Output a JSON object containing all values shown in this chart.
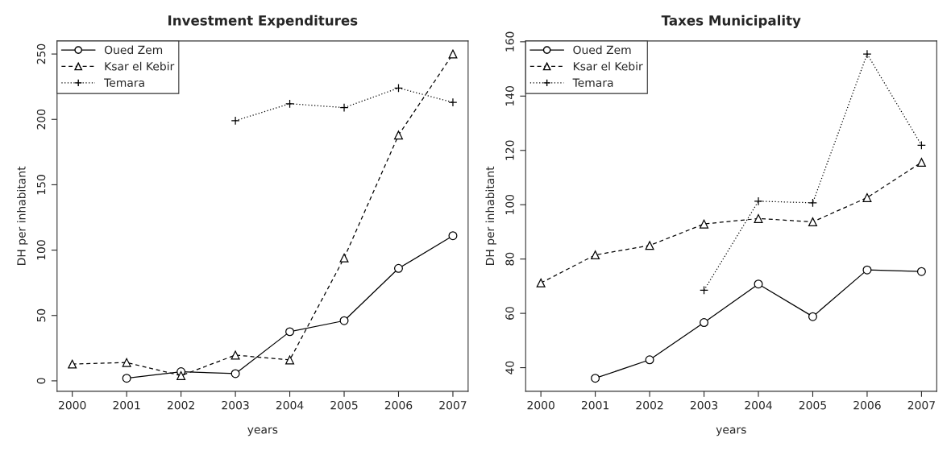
{
  "chart_data": [
    {
      "type": "line",
      "title": "Investment Expenditures",
      "xlabel": "years",
      "ylabel": "DH per inhabitant",
      "x": [
        2000,
        2001,
        2002,
        2003,
        2004,
        2005,
        2006,
        2007
      ],
      "xlim": [
        1999.72,
        2007.28
      ],
      "xticks": [
        2000,
        2001,
        2002,
        2003,
        2004,
        2005,
        2006,
        2007
      ],
      "ylim": [
        -8,
        260
      ],
      "yticks": [
        0,
        50,
        100,
        150,
        200,
        250
      ],
      "grid": false,
      "legend": "top left",
      "series": [
        {
          "name": "Oued Zem",
          "color": "#000000",
          "marker": "circle",
          "line_style": "solid",
          "values": [
            null,
            2,
            7,
            5.5,
            37.6,
            46,
            86,
            111
          ]
        },
        {
          "name": "Ksar el Kebir",
          "color": "#000000",
          "marker": "triangle",
          "line_style": "dashed",
          "values": [
            12.8,
            14,
            4,
            19.7,
            16,
            94,
            188,
            250
          ]
        },
        {
          "name": "Temara",
          "color": "#000000",
          "marker": "cross",
          "line_style": "dotted",
          "values": [
            null,
            null,
            null,
            199,
            212,
            209,
            224,
            213
          ]
        }
      ]
    },
    {
      "type": "line",
      "title": "Taxes Municipality",
      "xlabel": "years",
      "ylabel": "DH per inhabitant",
      "x": [
        2000,
        2001,
        2002,
        2003,
        2004,
        2005,
        2006,
        2007
      ],
      "xlim": [
        1999.72,
        2007.28
      ],
      "xticks": [
        2000,
        2001,
        2002,
        2003,
        2004,
        2005,
        2006,
        2007
      ],
      "ylim": [
        31.3,
        160.3
      ],
      "yticks": [
        40,
        60,
        80,
        100,
        120,
        140,
        160
      ],
      "grid": false,
      "legend": "top left",
      "series": [
        {
          "name": "Oued Zem",
          "color": "#000000",
          "marker": "circle",
          "line_style": "solid",
          "values": [
            null,
            36.1,
            42.9,
            56.6,
            70.8,
            58.8,
            76.0,
            75.4
          ]
        },
        {
          "name": "Ksar el Kebir",
          "color": "#000000",
          "marker": "triangle",
          "line_style": "dashed",
          "values": [
            71.2,
            81.5,
            85,
            92.9,
            94.9,
            93.7,
            102.6,
            115.6
          ]
        },
        {
          "name": "Temara",
          "color": "#000000",
          "marker": "cross",
          "line_style": "dotted",
          "values": [
            null,
            null,
            null,
            68.5,
            101.3,
            100.7,
            155.5,
            121.9
          ]
        }
      ]
    }
  ]
}
